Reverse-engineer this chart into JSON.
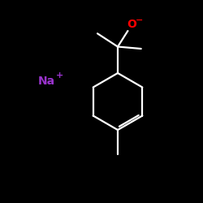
{
  "background_color": "#000000",
  "bond_color": "#ffffff",
  "oxygen_color": "#ff0000",
  "sodium_color": "#9933cc",
  "oxygen_label": "O",
  "oxygen_charge": "−",
  "sodium_label": "Na",
  "sodium_charge": "+",
  "fig_width": 2.5,
  "fig_height": 2.5,
  "dpi": 100,
  "lw": 1.6
}
